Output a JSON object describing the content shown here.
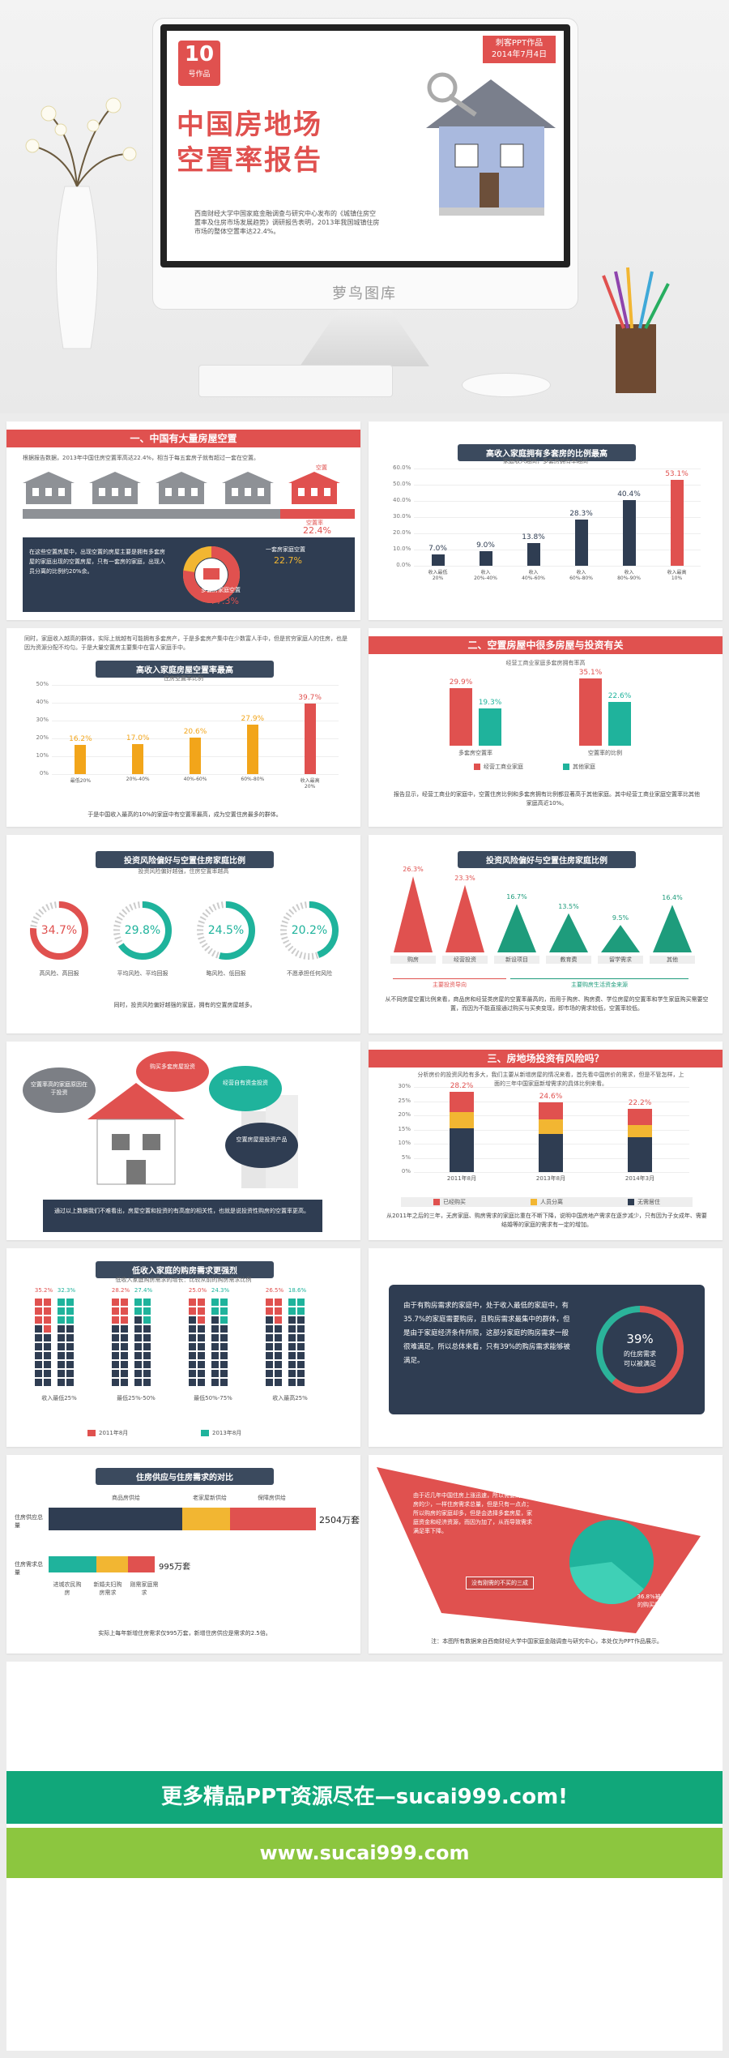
{
  "hero": {
    "badge_num": "10",
    "badge_sub": "号作品",
    "author": "刺客PPT作品",
    "date": "2014年7月4日",
    "title1": "中国房地场",
    "title2": "空置率报告",
    "intro": "西南财经大学中国家庭金融调查与研究中心发布的《城镇住房空置率及住房市场发展趋势》调研报告表明，2013年我国城镇住房市场的整体空置率达22.4%。",
    "watermark": "萝鸟图库"
  },
  "s1": {
    "title": "一、中国有大量房屋空置",
    "text": "根据报告数据，2013年中国住房空置率高达22.4%，相当于每五套房子就有超过一套在空置。",
    "house_label": "空置",
    "vacancy_label": "空置率",
    "vacancy": "22.4%",
    "desc": "在这些空置房屋中，出现空置的房屋主要是拥有多套房屋的家庭出现的空置房屋，只有一套房的家庭，出现人员分离的比例约20%余。",
    "donut_label1": "一套房家庭空置",
    "donut_val1": "22.7%",
    "donut_label2": "多套房家庭空置",
    "donut_val2": "77.3%"
  },
  "s2": {
    "title": "高收入家庭拥有多套房的比例最高",
    "subtitle": "家庭收入越高，多套房拥有率越高",
    "yticks": [
      "60.0%",
      "50.0%",
      "40.0%",
      "30.0%",
      "20.0%",
      "10.0%",
      "0.0%"
    ],
    "values": [
      "7.0%",
      "9.0%",
      "13.8%",
      "28.3%",
      "40.4%",
      "53.1%"
    ],
    "cats": [
      "收入最低20%",
      "收入20%-40%",
      "收入40%-60%",
      "收入60%-80%",
      "收入80%-90%",
      "收入最高10%"
    ]
  },
  "s3": {
    "intro": "同时，家庭收入越高的群体，实际上就越有可能拥有多套房产，于是多套房产集中在少数富人手中，但是贫穷家庭人的住房，也是因为资源分配不均匀。于是大量空置房主要集中在富人家庭手中。",
    "title": "高收入家庭房屋空置率最高",
    "subtitle": "住房空置率比例",
    "yticks": [
      "50%",
      "40%",
      "30%",
      "20%",
      "10%",
      "0%"
    ],
    "values": [
      "16.2%",
      "17.0%",
      "20.6%",
      "27.9%",
      "39.7%"
    ],
    "cats": [
      "最低20%",
      "20%-40%",
      "40%-60%",
      "60%-80%",
      "收入最高20%"
    ],
    "note": "于是中国收入最高的10%的家庭中有空置率最高，成为空置住房最多的群体。"
  },
  "s4": {
    "title": "二、空置房屋中很多房屋与投资有关",
    "subtitle": "经营工商业家庭多套房拥有率高",
    "values1": [
      "29.9%",
      "19.3%"
    ],
    "values2": [
      "35.1%",
      "22.6%"
    ],
    "cats": [
      "多套房空置率",
      "空置率的比例"
    ],
    "legend": [
      "经营工商业家庭",
      "其他家庭"
    ],
    "note": "报告显示，经营工商业的家庭中，空置住房比例和多套房拥有比例都显著高于其他家庭。其中经营工商业家庭空置率比其他家庭高近10%。"
  },
  "s5": {
    "title": "投资风险偏好与空置住房家庭比例",
    "subtitle": "投资风险偏好越强，住房空置率越高",
    "rings": [
      {
        "val": "34.7%",
        "lbl": "高风险、高回报"
      },
      {
        "val": "29.8%",
        "lbl": "平均风险、平均回报"
      },
      {
        "val": "24.5%",
        "lbl": "略风险、低回报"
      },
      {
        "val": "20.2%",
        "lbl": "不愿承担任何风险"
      }
    ],
    "note": "同时，投资风险偏好越强的家庭，拥有的空置房屋越多。"
  },
  "s6": {
    "title": "投资风险偏好与空置住房家庭比例",
    "values": [
      "26.3%",
      "23.3%",
      "16.7%",
      "13.5%",
      "9.5%",
      "16.4%"
    ],
    "cats": [
      "购房",
      "经营投资",
      "新设项目",
      "教育费",
      "留学需求",
      "其他"
    ],
    "group1": "主要投资导向",
    "group2": "主要购房生活资金来源",
    "note": "从不同房屋空置比例来看，商品房和经营类房屋的空置率最高的，而用于购房、购房费、学位房屋的空置率和学生家庭购买需要空置，而因为不能直接通过购买与买卖变现，即市场的需求较低，空置率较低。"
  },
  "s7": {
    "bubbles": [
      "空置率高的家庭原因在于投资",
      "购买多套房屋投资",
      "经营自有资金投资",
      "空置房屋是投资产品"
    ],
    "note": "通过以上数据我们不难看出，房屋空置和投资的有高度的相关性，也就是说投资性购房的空置率更高。"
  },
  "s8": {
    "title": "三、房地场投资有风险吗？",
    "intro": "分析房价的投资风险有多大，我们主要从新增房屋的情况来看，首先看中国房价的需求，但是不管怎样，上面的三年中国家庭新增需求的具体比例来看。",
    "yticks": [
      "30%",
      "25%",
      "20%",
      "15%",
      "10%",
      "5%",
      "0%"
    ],
    "values": [
      "28.2%",
      "24.6%",
      "22.2%"
    ],
    "cats": [
      "2011年8月",
      "2013年8月",
      "2014年3月"
    ],
    "legend": [
      "已经购买",
      "人员分离",
      "无需居住"
    ],
    "note": "从2011年之后的三年，无房家庭、购房需求的家庭比重在不断下降，说明中国房地产需求在逐步减少，只有因为子女成年、需要结婚等的家庭的需求有一定的增加。"
  },
  "s9": {
    "title": "低收入家庭的购房需求更强烈",
    "subtitle": "低收入家庭购房需求的增长：比较从前的购房需求比例",
    "top_vals": [
      "35.2%",
      "32.3%",
      "28.2%",
      "27.4%",
      "25.0%",
      "24.3%",
      "26.5%",
      "18.6%"
    ],
    "cats": [
      "收入最低25%",
      "最低25%-50%",
      "最低50%-75%",
      "收入最高25%"
    ],
    "legend": [
      "2011年8月",
      "2013年8月"
    ]
  },
  "s10": {
    "text": "由于有购房需求的家庭中，处于收入最低的家庭中，有35.7%的家庭需要购房，且购房需求最集中的群体，但是由于家庭经济条件所限，这部分家庭的购房需求一般很难满足。所以总体来看，只有39%的购房需求能够被满足。",
    "ring_val": "39%",
    "ring_lbl1": "的住房需求",
    "ring_lbl2": "可以被满足"
  },
  "s11": {
    "title": "住房供应与住房需求的对比",
    "supply_label": "住房供应总量",
    "demand_label": "住房需求总量",
    "supply_val": "2504万套",
    "demand_val": "995万套",
    "supply_parts": [
      "商品房供给",
      "老家屋新供给",
      "保障房供给"
    ],
    "demand_parts": [
      "进城农民购房",
      "新婚夫妇购房需求",
      "刚需家庭需求"
    ],
    "note": "实际上每年新增住房需求仅995万套，新增住房供应是需求的2.5倍。"
  },
  "s12": {
    "text": "由于近几年中国住房上涨迅速，所以需要购买住房的少，一样住房需求总量，但是只有一点点；所以购房的家庭却多，但是会选择多套房屋，家庭资金和经济资源，而因为加了，从而导致需求满足率下降。",
    "tag": "没有刚需的不买的三成",
    "pie_label": "36.8%被满足的购买需求比例",
    "note": "注：本图所有数据来自西南财经大学中国家庭金融调查与研究中心，本处仅为PPT作品展示。"
  },
  "footer": {
    "line1": "更多精品PPT资源尽在—sucai999.com!",
    "line2": "www.sucai999.com"
  }
}
